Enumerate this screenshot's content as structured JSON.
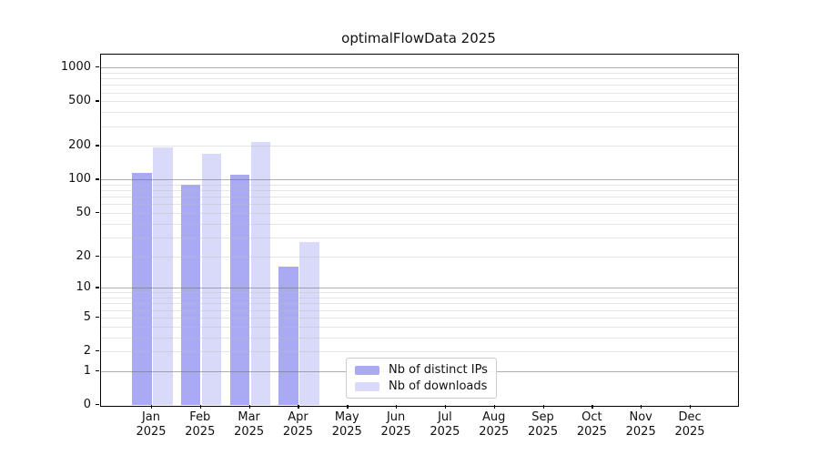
{
  "title": "optimalFlowData 2025",
  "chart_data": {
    "type": "bar",
    "categories": [
      "Jan",
      "Feb",
      "Mar",
      "Apr",
      "May",
      "Jun",
      "Jul",
      "Aug",
      "Sep",
      "Oct",
      "Nov",
      "Dec"
    ],
    "year": "2025",
    "series": [
      {
        "name": "Nb of distinct IPs",
        "color": "#a9a9f4",
        "values": [
          115,
          90,
          110,
          16,
          0,
          0,
          0,
          0,
          0,
          0,
          0,
          0
        ]
      },
      {
        "name": "Nb of downloads",
        "color": "#d9d9f9",
        "values": [
          195,
          170,
          215,
          27,
          0,
          0,
          0,
          0,
          0,
          0,
          0,
          0
        ]
      }
    ],
    "yticks": [
      0,
      1,
      2,
      5,
      10,
      20,
      50,
      100,
      200,
      500,
      1000
    ],
    "scale": "log(value+1)",
    "ylim": [
      0,
      1280
    ],
    "grid": true,
    "legend_position": "bottom-center",
    "xlabel": "",
    "ylabel": ""
  },
  "legend": {
    "items": [
      {
        "label": "Nb of distinct IPs",
        "color": "#a9a9f4"
      },
      {
        "label": "Nb of downloads",
        "color": "#d9d9f9"
      }
    ]
  },
  "colors": {
    "distinct_ips": "#a9a9f4",
    "downloads": "#d9d9f9",
    "axis": "#000000",
    "grid_major": "#b3b3b3",
    "grid_minor": "#e6e6e6"
  }
}
